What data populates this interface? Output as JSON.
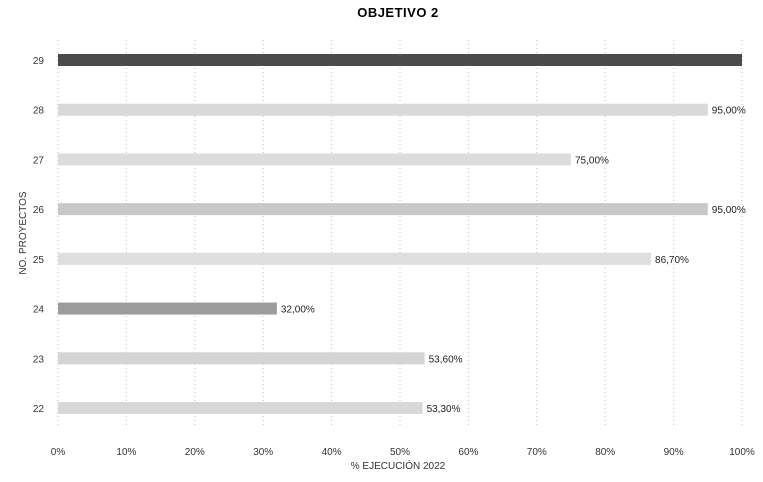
{
  "chart_data": {
    "type": "bar",
    "orientation": "horizontal",
    "title": "OBJETIVO 2",
    "xlabel": "% EJECUCIÓN 2022",
    "ylabel": "NO. PROYECTOS",
    "xlim": [
      0,
      100
    ],
    "xticks": [
      "0%",
      "10%",
      "20%",
      "30%",
      "40%",
      "50%",
      "60%",
      "70%",
      "80%",
      "90%",
      "100%"
    ],
    "categories": [
      "29",
      "28",
      "27",
      "26",
      "25",
      "24",
      "23",
      "22"
    ],
    "values": [
      100,
      95,
      75,
      95,
      86.7,
      32,
      53.6,
      53.3
    ],
    "data_labels": [
      "",
      "95,00%",
      "75,00%",
      "95,00%",
      "86,70%",
      "32,00%",
      "53,60%",
      "53,30%"
    ],
    "bar_colors": [
      "#4a4a4a",
      "#d9d9d9",
      "#dcdcdc",
      "#c8c8c8",
      "#dedede",
      "#9c9c9c",
      "#d4d4d4",
      "#d8d8d8"
    ],
    "grid": true,
    "legend": "none"
  }
}
